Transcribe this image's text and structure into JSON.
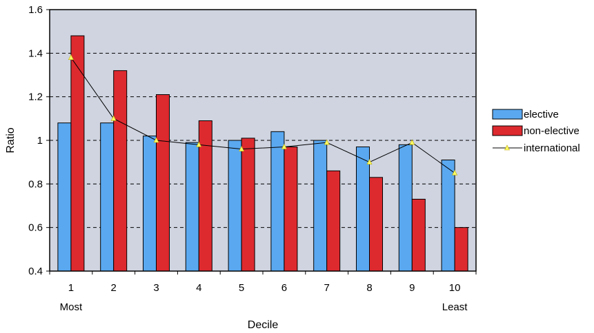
{
  "chart_data": {
    "type": "bar",
    "categories": [
      "1",
      "2",
      "3",
      "4",
      "5",
      "6",
      "7",
      "8",
      "9",
      "10"
    ],
    "category_sublabels": [
      "Most",
      "",
      "",
      "",
      "",
      "",
      "",
      "",
      "",
      "Least"
    ],
    "series": [
      {
        "name": "elective",
        "type": "bar",
        "color": "#5aa8f0",
        "values": [
          1.08,
          1.08,
          1.02,
          0.99,
          1.0,
          1.04,
          1.0,
          0.97,
          0.98,
          0.91
        ]
      },
      {
        "name": "non-elective",
        "type": "bar",
        "color": "#dd2a2f",
        "values": [
          1.48,
          1.32,
          1.21,
          1.09,
          1.01,
          0.97,
          0.86,
          0.83,
          0.73,
          0.6
        ]
      },
      {
        "name": "international",
        "type": "line",
        "color": "#000000",
        "marker_color": "#ffff66",
        "values": [
          1.38,
          1.1,
          1.0,
          0.98,
          0.96,
          0.97,
          0.99,
          0.9,
          0.99,
          0.85
        ]
      }
    ],
    "xlabel": "Decile",
    "ylabel": "Ratio",
    "ylim": [
      0.4,
      1.6
    ],
    "yticks": [
      "0.4",
      "0.6",
      "0.8",
      "1",
      "1.2",
      "1.4",
      "1.6"
    ],
    "plot_background": "#cfd4e0",
    "grid": "dashed horizontal",
    "legend_position": "right"
  }
}
